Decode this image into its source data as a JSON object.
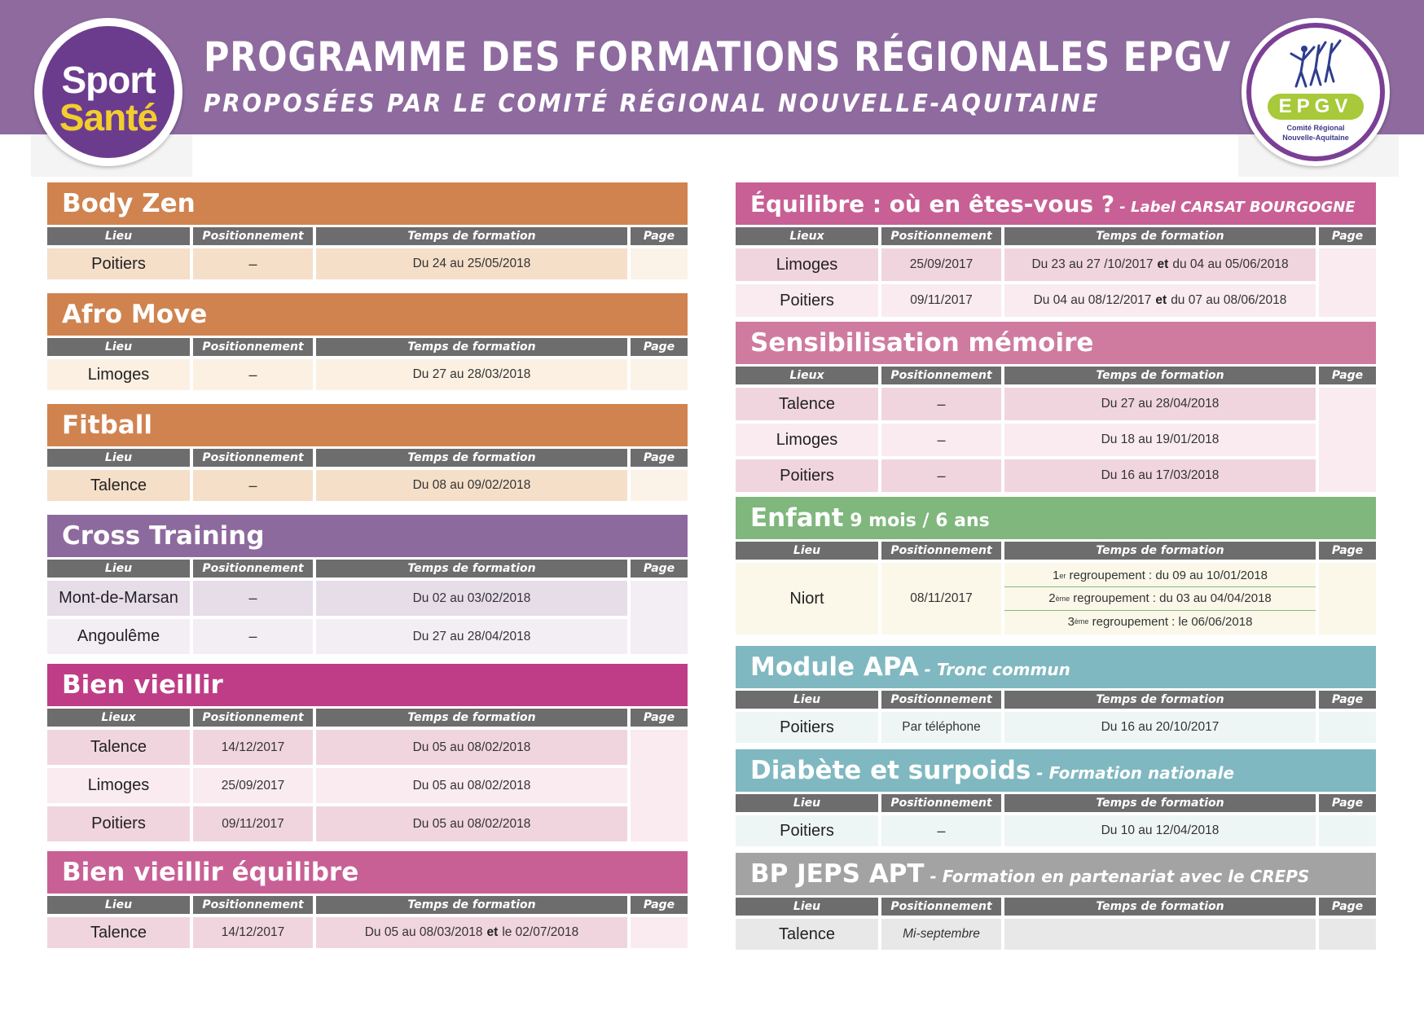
{
  "header": {
    "title": "PROGRAMME DES FORMATIONS RÉGIONALES EPGV",
    "subtitle": "PROPOSÉES PAR LE COMITÉ RÉGIONAL NOUVELLE-AQUITAINE",
    "background_color": "#8e6a9f"
  },
  "logo_sport_sante": {
    "line1": "Sport",
    "line2": "Santé",
    "colors": {
      "ring": "#6b3c8e",
      "sport": "#ffffff",
      "sante": "#f3cd2e"
    }
  },
  "logo_epgv": {
    "badge": "EPGV",
    "caption_line1": "Comité Régional",
    "caption_line2": "Nouvelle-Aquitaine",
    "colors": {
      "ring": "#7b3f95",
      "badge": "#a7c93a"
    }
  },
  "columns": {
    "lieu": "Lieu",
    "lieux": "Lieux",
    "positionnement": "Positionnement",
    "temps": "Temps de formation",
    "page": "Page"
  },
  "dash": "–",
  "sections_left": [
    {
      "title": "Body Zen",
      "subtitle": "",
      "colors": {
        "title_bg": "#d0834f",
        "row": "#f5dfc9",
        "page": "#fbf2e8"
      },
      "lieu_header": "Lieu",
      "rows": [
        {
          "lieu": "Poitiers",
          "position": "–",
          "temps": "Du 24 au 25/05/2018"
        }
      ]
    },
    {
      "title": "Afro Move",
      "subtitle": "",
      "colors": {
        "title_bg": "#d0834f",
        "row": "#fbf0e2",
        "page": "#fbf2e8"
      },
      "lieu_header": "Lieu",
      "rows": [
        {
          "lieu": "Limoges",
          "position": "–",
          "temps": "Du 27 au 28/03/2018"
        }
      ]
    },
    {
      "title": "Fitball",
      "subtitle": "",
      "colors": {
        "title_bg": "#d0834f",
        "row": "#f5dfc9",
        "page": "#fbf2e8"
      },
      "lieu_header": "Lieu",
      "rows": [
        {
          "lieu": "Talence",
          "position": "–",
          "temps": "Du 08 au 09/02/2018"
        }
      ]
    },
    {
      "title": "Cross Training",
      "subtitle": "",
      "colors": {
        "title_bg": "#8d6a9e",
        "row": "#e6dde9",
        "row_alt": "#f3eef4",
        "page": "#f3eef4"
      },
      "lieu_header": "Lieu",
      "rows": [
        {
          "lieu": "Mont-de-Marsan",
          "position": "–",
          "temps": "Du 02 au 03/02/2018"
        },
        {
          "lieu": "Angoulême",
          "position": "–",
          "temps": "Du 27 au 28/04/2018"
        }
      ]
    },
    {
      "title": "Bien vieillir",
      "subtitle": "",
      "colors": {
        "title_bg": "#be3d86",
        "row": "#f0d5df",
        "row_alt": "#f9ebf0",
        "page": "#f9ebf0"
      },
      "lieu_header": "Lieux",
      "rows": [
        {
          "lieu": "Talence",
          "position": "14/12/2017",
          "temps": "Du 05 au 08/02/2018"
        },
        {
          "lieu": "Limoges",
          "position": "25/09/2017",
          "temps": "Du 05 au 08/02/2018"
        },
        {
          "lieu": "Poitiers",
          "position": "09/11/2017",
          "temps": "Du 05 au 08/02/2018"
        }
      ]
    },
    {
      "title": "Bien vieillir équilibre",
      "subtitle": "",
      "colors": {
        "title_bg": "#c86095",
        "row": "#f0d5df",
        "page": "#f9ebf0"
      },
      "lieu_header": "Lieu",
      "rows": [
        {
          "lieu": "Talence",
          "position": "14/12/2017",
          "temps_a": "Du 05 au 08/03/2018",
          "temps_et": "et",
          "temps_b": "le 02/07/2018"
        }
      ]
    }
  ],
  "sections_right": [
    {
      "title": "Équilibre : où en êtes-vous ?",
      "subtitle": " - Label CARSAT BOURGOGNE",
      "colors": {
        "title_bg": "#c86095",
        "row": "#f0d5df",
        "row_alt": "#f9ebf0",
        "page": "#f9ebf0"
      },
      "lieu_header": "Lieux",
      "rows": [
        {
          "lieu": "Limoges",
          "position": "25/09/2017",
          "temps_a": "Du 23 au 27 /10/2017",
          "temps_et": "et",
          "temps_b": "du 04 au 05/06/2018"
        },
        {
          "lieu": "Poitiers",
          "position": "09/11/2017",
          "temps_a": "Du 04 au 08/12/2017",
          "temps_et": "et",
          "temps_b": "du 07 au 08/06/2018"
        }
      ]
    },
    {
      "title": "Sensibilisation mémoire",
      "subtitle": "",
      "colors": {
        "title_bg": "#cf7ba0",
        "row": "#f0d5df",
        "row_alt": "#f9ebf0",
        "page": "#f9ebf0"
      },
      "lieu_header": "Lieux",
      "rows": [
        {
          "lieu": "Talence",
          "position": "–",
          "temps": "Du 27 au 28/04/2018"
        },
        {
          "lieu": "Limoges",
          "position": "–",
          "temps": "Du 18 au 19/01/2018"
        },
        {
          "lieu": "Poitiers",
          "position": "–",
          "temps": "Du 16 au 17/03/2018"
        }
      ]
    },
    {
      "title": "Enfant",
      "subtitle": " 9 mois / 6 ans",
      "colors": {
        "title_bg": "#7fb77d",
        "row": "#fbf8ea",
        "page": "#fbf8ea"
      },
      "lieu_header": "Lieu",
      "rows": [
        {
          "lieu": "Niort",
          "position": "08/11/2017",
          "regroupements": [
            {
              "ord": "1",
              "sup": "er",
              "text": " regroupement : du 09 au 10/01/2018"
            },
            {
              "ord": "2",
              "sup": "ème",
              "text": " regroupement : du 03 au 04/04/2018"
            },
            {
              "ord": "3",
              "sup": "ème",
              "text": " regroupement : le 06/06/2018"
            }
          ]
        }
      ]
    },
    {
      "title": "Module APA",
      "subtitle": " - Tronc commun",
      "colors": {
        "title_bg": "#7fb8c0",
        "row": "#eef5f5",
        "page": "#eef5f5"
      },
      "lieu_header": "Lieu",
      "rows": [
        {
          "lieu": "Poitiers",
          "position": "Par téléphone",
          "temps": "Du 16 au 20/10/2017"
        }
      ]
    },
    {
      "title": "Diabète et surpoids",
      "subtitle": " - Formation nationale",
      "colors": {
        "title_bg": "#7fb8c0",
        "row": "#eef5f5",
        "page": "#eef5f5"
      },
      "lieu_header": "Lieu",
      "rows": [
        {
          "lieu": "Poitiers",
          "position": "–",
          "temps": "Du 10 au 12/04/2018"
        }
      ]
    },
    {
      "title": "BP JEPS APT",
      "subtitle": " - Formation en partenariat avec le CREPS",
      "colors": {
        "title_bg": "#a3a3a3",
        "row": "#e8e8e8",
        "page": "#e8e8e8"
      },
      "lieu_header": "Lieu",
      "rows": [
        {
          "lieu": "Talence",
          "position": "Mi-septembre",
          "temps": ""
        }
      ]
    }
  ]
}
